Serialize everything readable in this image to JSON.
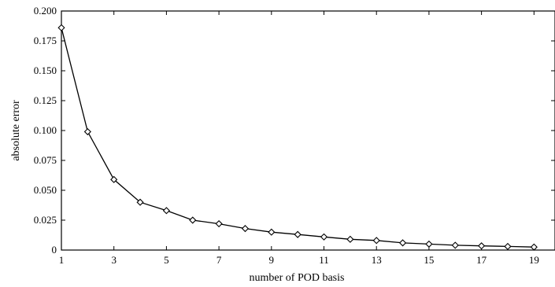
{
  "chart_data": {
    "type": "line",
    "xlabel": "number of POD basis",
    "ylabel": "absolute error",
    "xlim": [
      1,
      19.8
    ],
    "ylim": [
      0,
      0.2
    ],
    "x_ticks": [
      "1",
      "3",
      "5",
      "7",
      "9",
      "11",
      "13",
      "15",
      "17",
      "19"
    ],
    "y_ticks": [
      "0",
      "0.025",
      "0.050",
      "0.075",
      "0.100",
      "0.125",
      "0.150",
      "0.175",
      "0.200"
    ],
    "grid": false,
    "marker": "diamond",
    "line_color": "#000000",
    "series": [
      {
        "x": [
          1,
          2,
          3,
          4,
          5,
          6,
          7,
          8,
          9,
          10,
          11,
          12,
          13,
          14,
          15,
          16,
          17,
          18,
          19
        ],
        "values": [
          0.186,
          0.099,
          0.059,
          0.04,
          0.033,
          0.025,
          0.022,
          0.018,
          0.015,
          0.013,
          0.011,
          0.009,
          0.008,
          0.006,
          0.005,
          0.004,
          0.0035,
          0.003,
          0.0025
        ]
      }
    ]
  }
}
